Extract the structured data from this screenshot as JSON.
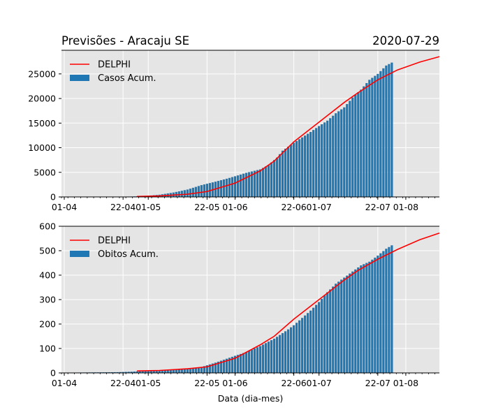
{
  "figure": {
    "title_left": "Previsões - Aracaju SE",
    "title_right": "2020-07-29",
    "xlabel": "Data (dia-mes)"
  },
  "chart_data": [
    {
      "type": "bar",
      "x_tick_labels": [
        "01-04",
        "22-04",
        "01-05",
        "22-05",
        "01-06",
        "22-06",
        "01-07",
        "22-07",
        "01-08"
      ],
      "x_tick_dates": [
        "2020-04-01",
        "2020-04-22",
        "2020-05-01",
        "2020-05-22",
        "2020-06-01",
        "2020-06-22",
        "2020-07-01",
        "2020-07-22",
        "2020-08-01"
      ],
      "xlim": [
        "2020-03-31",
        "2020-08-13"
      ],
      "ylim": [
        0,
        29800
      ],
      "y_ticks": [
        0,
        5000,
        10000,
        15000,
        20000,
        25000
      ],
      "grid": true,
      "legend": {
        "position": "top-left",
        "entries": [
          "DELPHI",
          "Casos Acum."
        ]
      },
      "colors": {
        "bar": "#1f77b4",
        "line": "#ff0000",
        "background": "#e5e5e5",
        "grid": "#ffffff"
      },
      "series": [
        {
          "name": "Casos Acum.",
          "kind": "bar",
          "points": [
            [
              "2020-04-01",
              2
            ],
            [
              "2020-04-08",
              8
            ],
            [
              "2020-04-15",
              20
            ],
            [
              "2020-04-20",
              40
            ],
            [
              "2020-04-25",
              90
            ],
            [
              "2020-04-28",
              150
            ],
            [
              "2020-05-01",
              250
            ],
            [
              "2020-05-05",
              450
            ],
            [
              "2020-05-10",
              900
            ],
            [
              "2020-05-15",
              1500
            ],
            [
              "2020-05-20",
              2400
            ],
            [
              "2020-05-25",
              3100
            ],
            [
              "2020-05-29",
              3700
            ],
            [
              "2020-06-01",
              4200
            ],
            [
              "2020-06-05",
              4900
            ],
            [
              "2020-06-10",
              5600
            ],
            [
              "2020-06-13",
              6500
            ],
            [
              "2020-06-16",
              8000
            ],
            [
              "2020-06-18",
              9400
            ],
            [
              "2020-06-20",
              10200
            ],
            [
              "2020-06-22",
              11000
            ],
            [
              "2020-06-25",
              12100
            ],
            [
              "2020-06-28",
              13200
            ],
            [
              "2020-07-01",
              14400
            ],
            [
              "2020-07-04",
              15500
            ],
            [
              "2020-07-07",
              17000
            ],
            [
              "2020-07-10",
              18200
            ],
            [
              "2020-07-13",
              20200
            ],
            [
              "2020-07-16",
              21800
            ],
            [
              "2020-07-19",
              23800
            ],
            [
              "2020-07-22",
              25000
            ],
            [
              "2020-07-25",
              26700
            ],
            [
              "2020-07-27",
              27300
            ]
          ]
        },
        {
          "name": "DELPHI",
          "kind": "line",
          "points": [
            [
              "2020-04-27",
              100
            ],
            [
              "2020-05-05",
              200
            ],
            [
              "2020-05-15",
              550
            ],
            [
              "2020-05-22",
              1100
            ],
            [
              "2020-06-01",
              2800
            ],
            [
              "2020-06-10",
              5300
            ],
            [
              "2020-06-15",
              7300
            ],
            [
              "2020-06-22",
              11200
            ],
            [
              "2020-07-01",
              15200
            ],
            [
              "2020-07-10",
              19200
            ],
            [
              "2020-07-15",
              21200
            ],
            [
              "2020-07-22",
              23800
            ],
            [
              "2020-07-29",
              25800
            ],
            [
              "2020-08-06",
              27400
            ],
            [
              "2020-08-13",
              28500
            ]
          ]
        }
      ]
    },
    {
      "type": "bar",
      "x_tick_labels": [
        "01-04",
        "22-04",
        "01-05",
        "22-05",
        "01-06",
        "22-06",
        "01-07",
        "22-07",
        "01-08"
      ],
      "x_tick_dates": [
        "2020-04-01",
        "2020-04-22",
        "2020-05-01",
        "2020-05-22",
        "2020-06-01",
        "2020-06-22",
        "2020-07-01",
        "2020-07-22",
        "2020-08-01"
      ],
      "xlim": [
        "2020-03-31",
        "2020-08-13"
      ],
      "ylim": [
        0,
        600
      ],
      "y_ticks": [
        0,
        100,
        200,
        300,
        400,
        500,
        600
      ],
      "grid": true,
      "legend": {
        "position": "top-left",
        "entries": [
          "DELPHI",
          "Obitos Acum."
        ]
      },
      "colors": {
        "bar": "#1f77b4",
        "line": "#ff0000",
        "background": "#e5e5e5",
        "grid": "#ffffff"
      },
      "series": [
        {
          "name": "Obitos Acum.",
          "kind": "bar",
          "points": [
            [
              "2020-04-01",
              1
            ],
            [
              "2020-04-10",
              2
            ],
            [
              "2020-04-20",
              3
            ],
            [
              "2020-04-25",
              5
            ],
            [
              "2020-04-28",
              7
            ],
            [
              "2020-05-01",
              8
            ],
            [
              "2020-05-05",
              10
            ],
            [
              "2020-05-10",
              13
            ],
            [
              "2020-05-15",
              17
            ],
            [
              "2020-05-20",
              24
            ],
            [
              "2020-05-25",
              42
            ],
            [
              "2020-05-29",
              58
            ],
            [
              "2020-06-01",
              70
            ],
            [
              "2020-06-05",
              85
            ],
            [
              "2020-06-10",
              110
            ],
            [
              "2020-06-15",
              140
            ],
            [
              "2020-06-20",
              178
            ],
            [
              "2020-06-22",
              195
            ],
            [
              "2020-06-25",
              225
            ],
            [
              "2020-06-28",
              255
            ],
            [
              "2020-07-01",
              290
            ],
            [
              "2020-07-04",
              330
            ],
            [
              "2020-07-07",
              365
            ],
            [
              "2020-07-10",
              390
            ],
            [
              "2020-07-13",
              415
            ],
            [
              "2020-07-16",
              440
            ],
            [
              "2020-07-19",
              455
            ],
            [
              "2020-07-22",
              480
            ],
            [
              "2020-07-25",
              508
            ],
            [
              "2020-07-27",
              522
            ]
          ]
        },
        {
          "name": "DELPHI",
          "kind": "line",
          "points": [
            [
              "2020-04-27",
              8
            ],
            [
              "2020-05-05",
              10
            ],
            [
              "2020-05-15",
              17
            ],
            [
              "2020-05-22",
              25
            ],
            [
              "2020-06-01",
              60
            ],
            [
              "2020-06-10",
              115
            ],
            [
              "2020-06-15",
              150
            ],
            [
              "2020-06-22",
              220
            ],
            [
              "2020-07-01",
              300
            ],
            [
              "2020-07-10",
              380
            ],
            [
              "2020-07-15",
              420
            ],
            [
              "2020-07-22",
              465
            ],
            [
              "2020-07-29",
              505
            ],
            [
              "2020-08-06",
              545
            ],
            [
              "2020-08-13",
              572
            ]
          ]
        }
      ]
    }
  ]
}
